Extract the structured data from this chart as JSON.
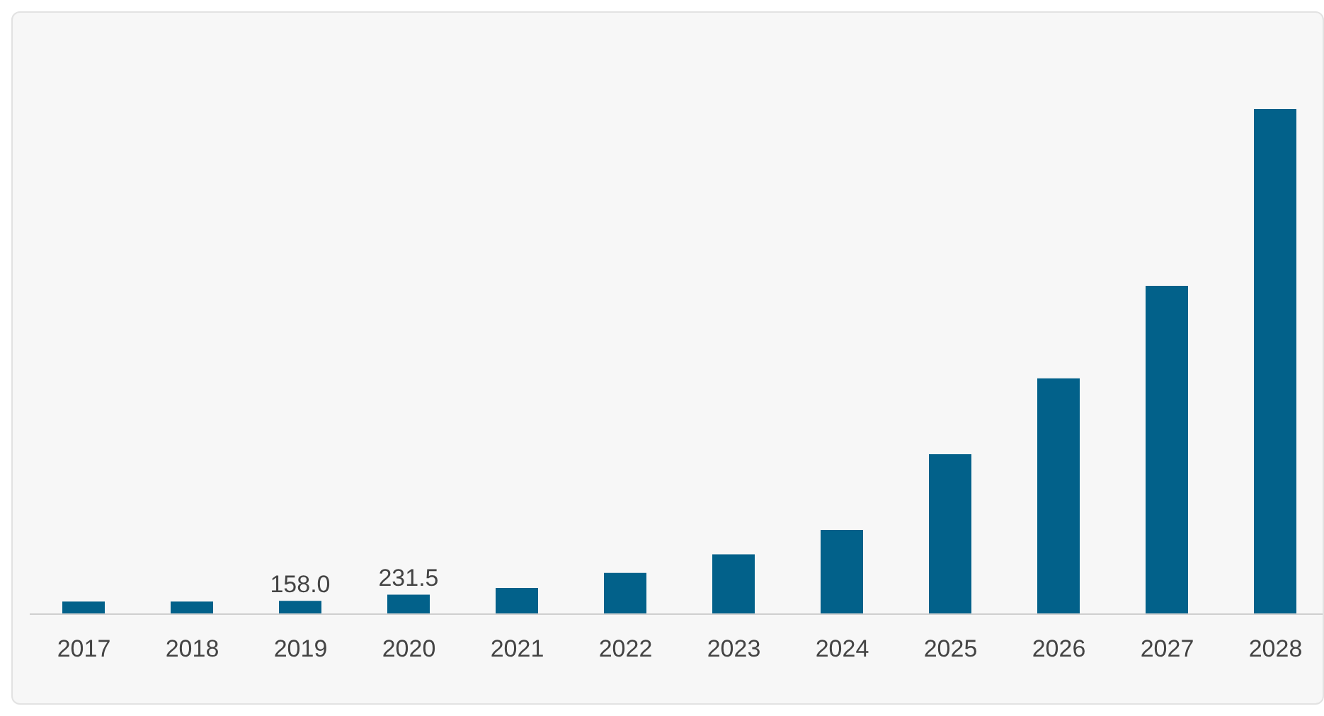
{
  "chart_data": {
    "type": "bar",
    "categories": [
      "2017",
      "2018",
      "2019",
      "2020",
      "2021",
      "2022",
      "2023",
      "2024",
      "2025",
      "2026",
      "2027",
      "2028"
    ],
    "values": [
      150,
      150,
      158.0,
      231.5,
      310,
      490,
      710,
      1000,
      1900,
      2800,
      3900,
      6000
    ],
    "value_labels": [
      null,
      null,
      "158.0",
      "231.5",
      null,
      null,
      null,
      null,
      null,
      null,
      null,
      null
    ],
    "color": "#02618a"
  }
}
